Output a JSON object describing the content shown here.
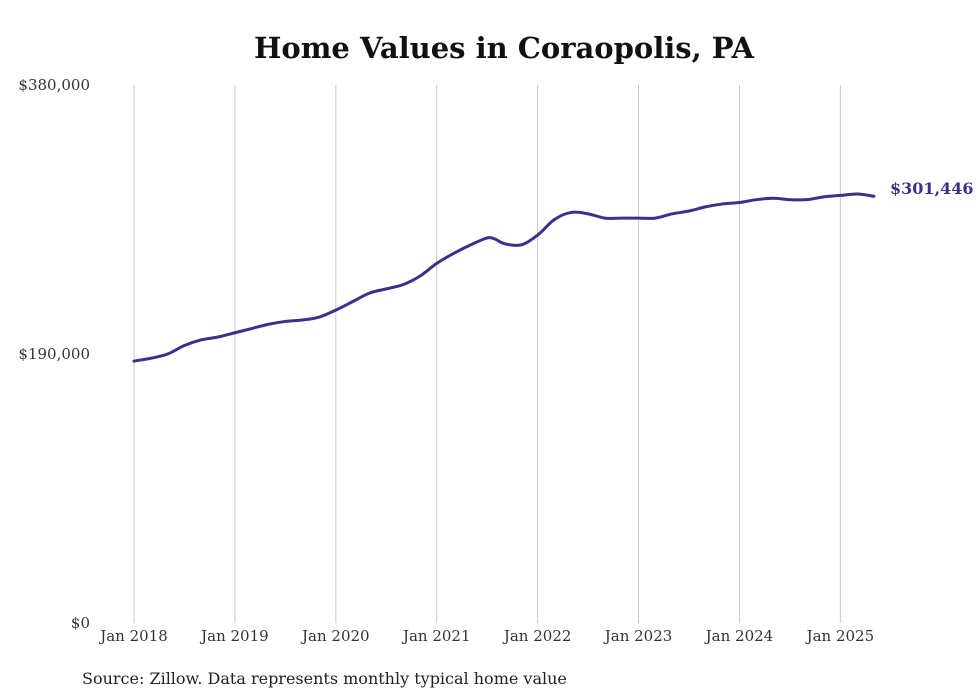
{
  "chart_data": {
    "type": "line",
    "title": "Home Values in Coraopolis, PA",
    "xlabel": "",
    "ylabel": "",
    "x_range": [
      "2018-01",
      "2025-05"
    ],
    "ylim": [
      0,
      380000
    ],
    "y_ticks": [
      {
        "value": 0,
        "label": "$0"
      },
      {
        "value": 190000,
        "label": "$190,000"
      },
      {
        "value": 380000,
        "label": "$380,000"
      }
    ],
    "x_ticks": [
      {
        "date": "2018-01",
        "label": "Jan 2018"
      },
      {
        "date": "2019-01",
        "label": "Jan 2019"
      },
      {
        "date": "2020-01",
        "label": "Jan 2020"
      },
      {
        "date": "2021-01",
        "label": "Jan 2021"
      },
      {
        "date": "2022-01",
        "label": "Jan 2022"
      },
      {
        "date": "2023-01",
        "label": "Jan 2023"
      },
      {
        "date": "2024-01",
        "label": "Jan 2024"
      },
      {
        "date": "2025-01",
        "label": "Jan 2025"
      }
    ],
    "grid": {
      "vertical": true,
      "horizontal": false
    },
    "line_color": "#3d2f8a",
    "series": [
      {
        "points": [
          [
            "2018-01",
            185000
          ],
          [
            "2018-03",
            187000
          ],
          [
            "2018-05",
            190000
          ],
          [
            "2018-07",
            196000
          ],
          [
            "2018-09",
            200000
          ],
          [
            "2018-11",
            202000
          ],
          [
            "2019-01",
            205000
          ],
          [
            "2019-03",
            208000
          ],
          [
            "2019-05",
            211000
          ],
          [
            "2019-07",
            213000
          ],
          [
            "2019-09",
            214000
          ],
          [
            "2019-11",
            216000
          ],
          [
            "2020-01",
            221000
          ],
          [
            "2020-03",
            227000
          ],
          [
            "2020-05",
            233000
          ],
          [
            "2020-07",
            236000
          ],
          [
            "2020-09",
            239000
          ],
          [
            "2020-11",
            245000
          ],
          [
            "2021-01",
            254000
          ],
          [
            "2021-03",
            261000
          ],
          [
            "2021-05",
            267000
          ],
          [
            "2021-07",
            272000
          ],
          [
            "2021-08",
            271000
          ],
          [
            "2021-09",
            268000
          ],
          [
            "2021-11",
            267000
          ],
          [
            "2022-01",
            274000
          ],
          [
            "2022-03",
            285000
          ],
          [
            "2022-05",
            290000
          ],
          [
            "2022-07",
            289000
          ],
          [
            "2022-09",
            286000
          ],
          [
            "2022-11",
            286000
          ],
          [
            "2023-01",
            286000
          ],
          [
            "2023-03",
            286000
          ],
          [
            "2023-05",
            289000
          ],
          [
            "2023-07",
            291000
          ],
          [
            "2023-09",
            294000
          ],
          [
            "2023-11",
            296000
          ],
          [
            "2024-01",
            297000
          ],
          [
            "2024-03",
            299000
          ],
          [
            "2024-05",
            300000
          ],
          [
            "2024-07",
            299000
          ],
          [
            "2024-09",
            299000
          ],
          [
            "2024-11",
            301000
          ],
          [
            "2025-01",
            302000
          ],
          [
            "2025-03",
            303000
          ],
          [
            "2025-05",
            301446
          ]
        ]
      }
    ],
    "end_label": "$301,446",
    "source_note": "Source: Zillow. Data represents monthly typical home value"
  }
}
